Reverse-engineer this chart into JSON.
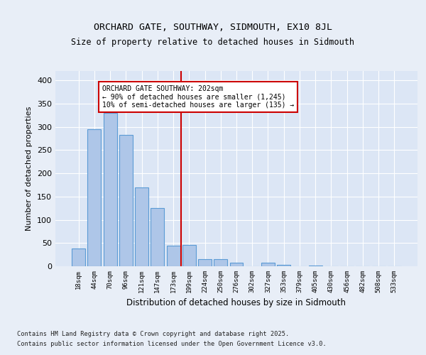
{
  "title": "ORCHARD GATE, SOUTHWAY, SIDMOUTH, EX10 8JL",
  "subtitle": "Size of property relative to detached houses in Sidmouth",
  "xlabel": "Distribution of detached houses by size in Sidmouth",
  "ylabel": "Number of detached properties",
  "categories": [
    "18sqm",
    "44sqm",
    "70sqm",
    "96sqm",
    "121sqm",
    "147sqm",
    "173sqm",
    "199sqm",
    "224sqm",
    "250sqm",
    "276sqm",
    "302sqm",
    "327sqm",
    "353sqm",
    "379sqm",
    "405sqm",
    "430sqm",
    "456sqm",
    "482sqm",
    "508sqm",
    "533sqm"
  ],
  "values": [
    38,
    295,
    330,
    283,
    170,
    125,
    44,
    46,
    15,
    15,
    7,
    0,
    7,
    3,
    0,
    2,
    0,
    0,
    0,
    0,
    0
  ],
  "bar_color": "#aec6e8",
  "bar_edge_color": "#5b9bd5",
  "vline_x_idx": 7,
  "vline_color": "#cc0000",
  "annotation_text": "ORCHARD GATE SOUTHWAY: 202sqm\n← 90% of detached houses are smaller (1,245)\n10% of semi-detached houses are larger (135) →",
  "annotation_box_color": "#cc0000",
  "annotation_box_fill": "#ffffff",
  "ylim": [
    0,
    420
  ],
  "yticks": [
    0,
    50,
    100,
    150,
    200,
    250,
    300,
    350,
    400
  ],
  "background_color": "#e8eef7",
  "plot_bg_color": "#dce6f5",
  "footer_line1": "Contains HM Land Registry data © Crown copyright and database right 2025.",
  "footer_line2": "Contains public sector information licensed under the Open Government Licence v3.0."
}
